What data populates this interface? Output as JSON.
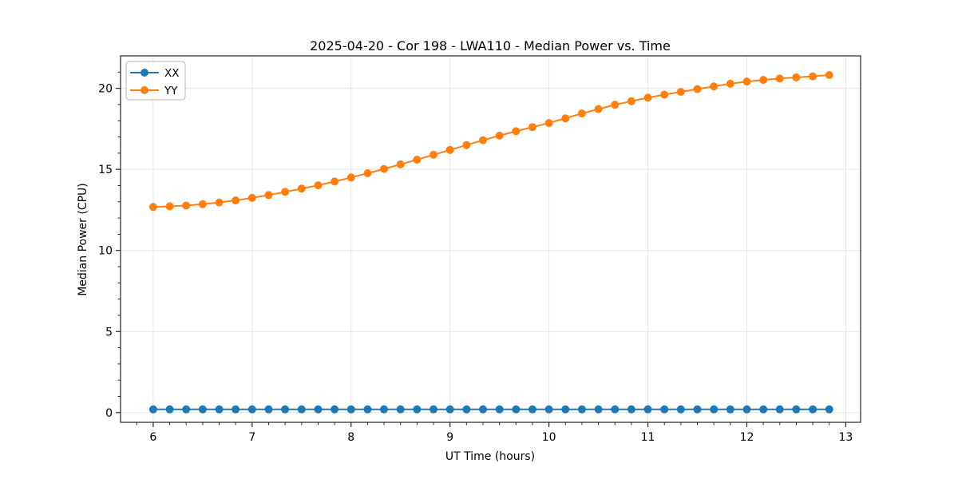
{
  "chart_data": {
    "type": "line",
    "title": "2025-04-20 - Cor 198 - LWA110 - Median Power vs. Time",
    "xlabel": "UT Time (hours)",
    "ylabel": "Median Power (CPU)",
    "xlim": [
      5.67,
      13.15
    ],
    "ylim": [
      -0.6,
      22.0
    ],
    "x_major_ticks": [
      6,
      7,
      8,
      9,
      10,
      11,
      12,
      13
    ],
    "x_tick_labels": [
      "6",
      "7",
      "8",
      "9",
      "10",
      "11",
      "12",
      "13"
    ],
    "y_major_ticks": [
      0,
      5,
      10,
      15,
      20
    ],
    "y_tick_labels": [
      "0",
      "5",
      "10",
      "15",
      "20"
    ],
    "x_minor_step": 0.166667,
    "y_minor_step": 1,
    "grid": true,
    "grid_color": "#e6e6e6",
    "spine_color": "#262626",
    "legend_position": "upper-left",
    "x": [
      6.0,
      6.167,
      6.333,
      6.5,
      6.667,
      6.833,
      7.0,
      7.167,
      7.333,
      7.5,
      7.667,
      7.833,
      8.0,
      8.167,
      8.333,
      8.5,
      8.667,
      8.833,
      9.0,
      9.167,
      9.333,
      9.5,
      9.667,
      9.833,
      10.0,
      10.167,
      10.333,
      10.5,
      10.667,
      10.833,
      11.0,
      11.167,
      11.333,
      11.5,
      11.667,
      11.833,
      12.0,
      12.167,
      12.333,
      12.5,
      12.667,
      12.833
    ],
    "series": [
      {
        "name": "XX",
        "color": "#1f77b4",
        "values": [
          0.2,
          0.2,
          0.2,
          0.2,
          0.2,
          0.2,
          0.2,
          0.2,
          0.2,
          0.2,
          0.2,
          0.2,
          0.2,
          0.2,
          0.2,
          0.2,
          0.2,
          0.2,
          0.2,
          0.2,
          0.2,
          0.2,
          0.2,
          0.2,
          0.2,
          0.2,
          0.2,
          0.2,
          0.2,
          0.2,
          0.2,
          0.2,
          0.2,
          0.2,
          0.2,
          0.2,
          0.2,
          0.2,
          0.2,
          0.2,
          0.2,
          0.2
        ]
      },
      {
        "name": "YY",
        "color": "#ff7f0e",
        "values": [
          12.68,
          12.72,
          12.77,
          12.85,
          12.96,
          13.09,
          13.24,
          13.42,
          13.61,
          13.81,
          14.02,
          14.25,
          14.5,
          14.76,
          15.03,
          15.31,
          15.6,
          15.9,
          16.2,
          16.5,
          16.8,
          17.08,
          17.35,
          17.61,
          17.86,
          18.15,
          18.45,
          18.72,
          18.98,
          19.21,
          19.42,
          19.61,
          19.78,
          19.95,
          20.12,
          20.28,
          20.42,
          20.52,
          20.6,
          20.67,
          20.74,
          20.82
        ]
      }
    ]
  }
}
